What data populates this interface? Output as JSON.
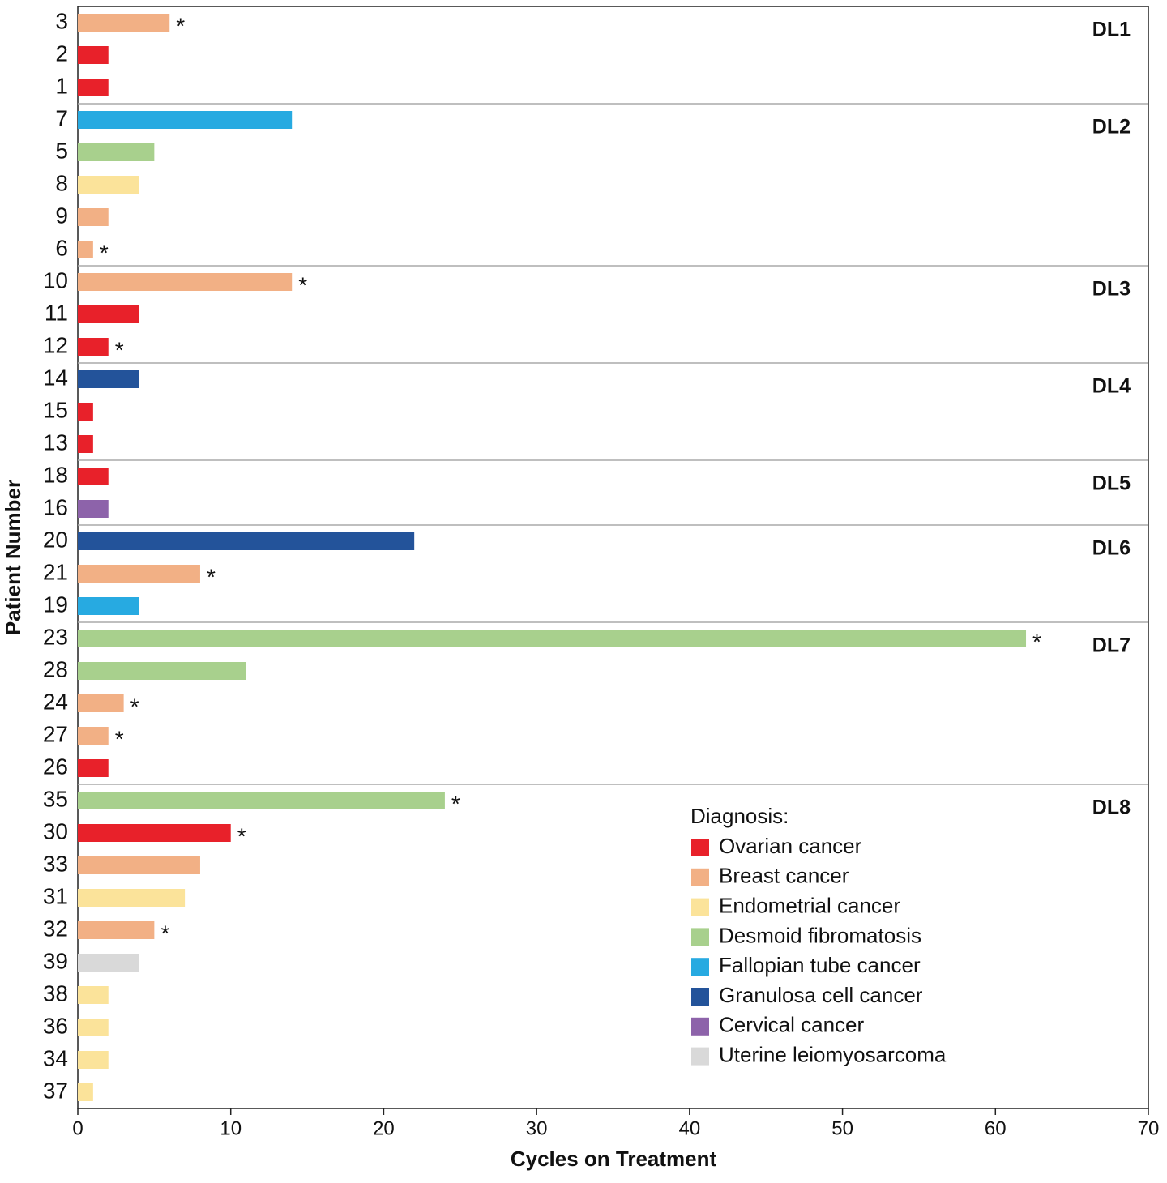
{
  "chart_data": {
    "type": "hbar",
    "xlabel": "Cycles on Treatment",
    "ylabel": "Patient Number",
    "categories": [
      "3",
      "2",
      "1",
      "7",
      "5",
      "8",
      "9",
      "6",
      "10",
      "11",
      "12",
      "14",
      "15",
      "13",
      "18",
      "16",
      "20",
      "21",
      "19",
      "23",
      "28",
      "24",
      "27",
      "26",
      "35",
      "30",
      "33",
      "31",
      "32",
      "39",
      "38",
      "36",
      "34",
      "37"
    ],
    "dose_level": [
      "DL1",
      "DL1",
      "DL1",
      "DL2",
      "DL2",
      "DL2",
      "DL2",
      "DL2",
      "DL3",
      "DL3",
      "DL3",
      "DL4",
      "DL4",
      "DL4",
      "DL5",
      "DL5",
      "DL6",
      "DL6",
      "DL6",
      "DL7",
      "DL7",
      "DL7",
      "DL7",
      "DL7",
      "DL8",
      "DL8",
      "DL8",
      "DL8",
      "DL8",
      "DL8",
      "DL8",
      "DL8",
      "DL8",
      "DL8"
    ],
    "asterisk": "*",
    "ongoing": [
      true,
      false,
      false,
      false,
      false,
      false,
      false,
      true,
      true,
      false,
      true,
      false,
      false,
      false,
      false,
      false,
      false,
      true,
      false,
      true,
      false,
      true,
      true,
      false,
      true,
      true,
      false,
      false,
      true,
      false,
      false,
      false,
      false,
      false
    ],
    "legend_title": "Diagnosis:",
    "series": [
      {
        "name": "Ovarian cancer",
        "color": "#e8212a",
        "values": [
          null,
          2,
          2,
          null,
          null,
          null,
          null,
          null,
          null,
          4,
          2,
          null,
          1,
          1,
          2,
          null,
          null,
          null,
          null,
          null,
          null,
          null,
          null,
          2,
          null,
          10,
          null,
          null,
          null,
          null,
          null,
          null,
          null,
          null
        ]
      },
      {
        "name": "Breast cancer",
        "color": "#f2b085",
        "values": [
          6,
          null,
          null,
          null,
          null,
          null,
          2,
          1,
          14,
          null,
          null,
          null,
          null,
          null,
          null,
          null,
          null,
          8,
          null,
          null,
          null,
          3,
          2,
          null,
          null,
          null,
          8,
          null,
          5,
          null,
          null,
          null,
          null,
          null
        ]
      },
      {
        "name": "Endometrial cancer",
        "color": "#fbe39a",
        "values": [
          null,
          null,
          null,
          null,
          null,
          4,
          null,
          null,
          null,
          null,
          null,
          null,
          null,
          null,
          null,
          null,
          null,
          null,
          null,
          null,
          null,
          null,
          null,
          null,
          null,
          null,
          null,
          7,
          null,
          null,
          2,
          2,
          2,
          1
        ]
      },
      {
        "name": "Desmoid fibromatosis",
        "color": "#a8d08d",
        "values": [
          null,
          null,
          null,
          null,
          5,
          null,
          null,
          null,
          null,
          null,
          null,
          null,
          null,
          null,
          null,
          null,
          null,
          null,
          null,
          62,
          11,
          null,
          null,
          null,
          24,
          null,
          null,
          null,
          null,
          null,
          null,
          null,
          null,
          null
        ]
      },
      {
        "name": "Fallopian tube cancer",
        "color": "#27aae1",
        "values": [
          null,
          null,
          null,
          14,
          null,
          null,
          null,
          null,
          null,
          null,
          null,
          null,
          null,
          null,
          null,
          null,
          null,
          null,
          4,
          null,
          null,
          null,
          null,
          null,
          null,
          null,
          null,
          null,
          null,
          null,
          null,
          null,
          null,
          null
        ]
      },
      {
        "name": "Granulosa cell cancer",
        "color": "#23539a",
        "values": [
          null,
          null,
          null,
          null,
          null,
          null,
          null,
          null,
          null,
          null,
          null,
          4,
          null,
          null,
          null,
          null,
          22,
          null,
          null,
          null,
          null,
          null,
          null,
          null,
          null,
          null,
          null,
          null,
          null,
          null,
          null,
          null,
          null,
          null
        ]
      },
      {
        "name": "Cervical cancer",
        "color": "#8d63aa",
        "values": [
          null,
          null,
          null,
          null,
          null,
          null,
          null,
          null,
          null,
          null,
          null,
          null,
          null,
          null,
          null,
          2,
          null,
          null,
          null,
          null,
          null,
          null,
          null,
          null,
          null,
          null,
          null,
          null,
          null,
          null,
          null,
          null,
          null,
          null
        ]
      },
      {
        "name": "Uterine leiomyosarcoma",
        "color": "#d9d9d9",
        "values": [
          null,
          null,
          null,
          null,
          null,
          null,
          null,
          null,
          null,
          null,
          null,
          null,
          null,
          null,
          null,
          null,
          null,
          null,
          null,
          null,
          null,
          null,
          null,
          null,
          null,
          null,
          null,
          null,
          null,
          4,
          null,
          null,
          null,
          null
        ]
      }
    ],
    "xlim": [
      0,
      70
    ],
    "xticks": [
      0,
      10,
      20,
      30,
      40,
      50,
      60,
      70
    ]
  }
}
